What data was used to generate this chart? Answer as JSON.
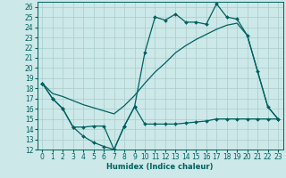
{
  "xlabel": "Humidex (Indice chaleur)",
  "bg_color": "#cce8e8",
  "grid_color": "#aacccc",
  "line_color": "#006060",
  "xlim": [
    -0.5,
    23.5
  ],
  "ylim": [
    12,
    26.5
  ],
  "yticks": [
    12,
    13,
    14,
    15,
    16,
    17,
    18,
    19,
    20,
    21,
    22,
    23,
    24,
    25,
    26
  ],
  "xticks": [
    0,
    1,
    2,
    3,
    4,
    5,
    6,
    7,
    8,
    9,
    10,
    11,
    12,
    13,
    14,
    15,
    16,
    17,
    18,
    19,
    20,
    21,
    22,
    23
  ],
  "line1_x": [
    0,
    1,
    2,
    3,
    4,
    5,
    6,
    7,
    8,
    9,
    10,
    11,
    12,
    13,
    14,
    15,
    16,
    17,
    18,
    19,
    20,
    21,
    22,
    23
  ],
  "line1_y": [
    18.5,
    17.0,
    16.0,
    14.2,
    13.3,
    12.7,
    12.3,
    12.0,
    14.3,
    16.2,
    21.5,
    25.0,
    24.7,
    25.3,
    24.5,
    24.5,
    24.3,
    26.3,
    25.0,
    24.8,
    23.2,
    19.7,
    16.2,
    15.0
  ],
  "line2_x": [
    0,
    1,
    2,
    3,
    4,
    5,
    6,
    7,
    8,
    9,
    10,
    11,
    12,
    13,
    14,
    15,
    16,
    17,
    18,
    19,
    20,
    21,
    22,
    23
  ],
  "line2_y": [
    18.5,
    17.5,
    17.2,
    16.8,
    16.4,
    16.1,
    15.8,
    15.5,
    16.3,
    17.3,
    18.5,
    19.6,
    20.5,
    21.5,
    22.2,
    22.8,
    23.3,
    23.8,
    24.2,
    24.4,
    23.2,
    19.7,
    16.2,
    15.0
  ],
  "line3_x": [
    0,
    1,
    2,
    3,
    4,
    5,
    6,
    7,
    8,
    9,
    10,
    11,
    12,
    13,
    14,
    15,
    16,
    17,
    18,
    19,
    20,
    21,
    22,
    23
  ],
  "line3_y": [
    18.5,
    17.0,
    16.0,
    14.2,
    14.2,
    14.3,
    14.3,
    12.0,
    14.3,
    16.2,
    14.5,
    14.5,
    14.5,
    14.5,
    14.6,
    14.7,
    14.8,
    15.0,
    15.0,
    15.0,
    15.0,
    15.0,
    15.0,
    15.0
  ],
  "line1_markers": true,
  "line2_markers": false,
  "line3_markers": true,
  "marker_size": 2.0,
  "line_width": 0.9,
  "tick_fontsize": 5.5,
  "xlabel_fontsize": 6.0
}
